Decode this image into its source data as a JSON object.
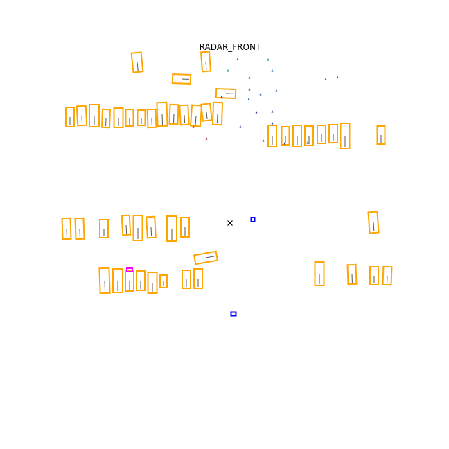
{
  "title": "RADAR_FRONT",
  "colors": {
    "box": "#ffa500",
    "radar_points": [
      "#008b8b",
      "#1e5aa8",
      "#2a3b8f",
      "#8b0000"
    ],
    "ego_marker": "#000000",
    "blue_box": "#0000ff",
    "magenta_box": "#ff00ff"
  },
  "icons": {
    "ego": "x-marker-icon"
  },
  "legend": []
}
